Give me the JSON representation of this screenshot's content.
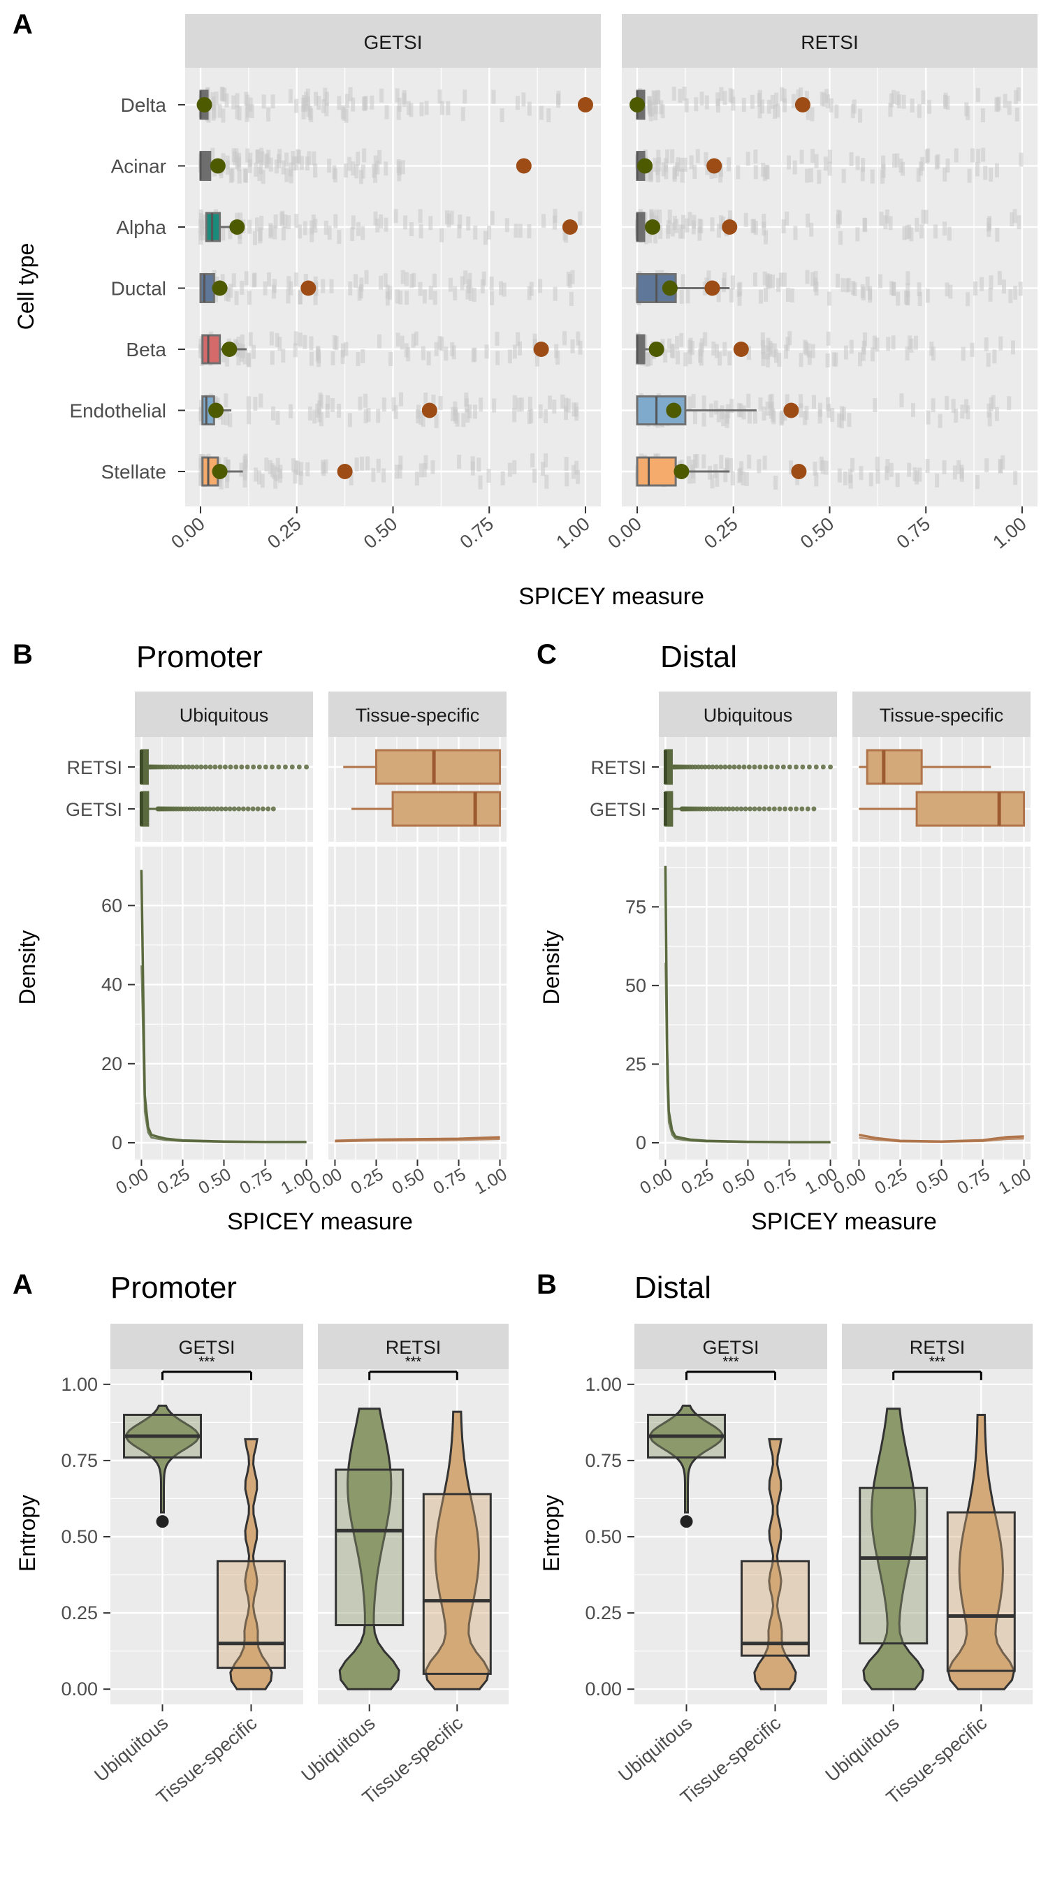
{
  "colors": {
    "panel_bg": "#ebebeb",
    "strip_bg": "#d9d9d9",
    "grid": "#ffffff",
    "ubiq_green": "#5b6a3e",
    "ubiq_fill": "#8c9a6b",
    "tissue_tan": "#b0744a",
    "tissue_fill": "#d4a979",
    "jitter_grey": "#c8c8c8",
    "dot_olive": "#4d5a00",
    "dot_brown": "#9c4c14",
    "box_grey": "#707070"
  },
  "chart_data": [
    {
      "id": "A_top",
      "type": "box+jitter",
      "panel_label": "A",
      "facets": [
        "GETSI",
        "RETSI"
      ],
      "ylabel": "Cell type",
      "xlabel": "SPICEY measure",
      "xlim": [
        0,
        1
      ],
      "xticks": [
        "0.00",
        "0.25",
        "0.50",
        "0.75",
        "1.00"
      ],
      "categories": [
        "Delta",
        "Acinar",
        "Alpha",
        "Ductal",
        "Beta",
        "Endothelial",
        "Stellate"
      ],
      "category_colors": {
        "GETSI": [
          "#6e6e6e",
          "#6e6e6e",
          "#1a8a7a",
          "#5f7899",
          "#d46a6a",
          "#7faacb",
          "#f5ab6c"
        ],
        "RETSI": [
          "#6e6e6e",
          "#6e6e6e",
          "#6e6e6e",
          "#5f7899",
          "#6e6e6e",
          "#7faacb",
          "#f5ab6c"
        ]
      },
      "series": [
        {
          "facet": "GETSI",
          "box": [
            {
              "q1": 0.0,
              "median": 0.0,
              "q3": 0.015,
              "whisker_high": 0.015
            },
            {
              "q1": 0.0,
              "median": 0.0,
              "q3": 0.025,
              "whisker_high": 0.025
            },
            {
              "q1": 0.015,
              "median": 0.03,
              "q3": 0.05,
              "whisker_high": 0.09
            },
            {
              "q1": 0.0,
              "median": 0.01,
              "q3": 0.035,
              "whisker_high": 0.07
            },
            {
              "q1": 0.005,
              "median": 0.02,
              "q3": 0.05,
              "whisker_high": 0.12
            },
            {
              "q1": 0.005,
              "median": 0.015,
              "q3": 0.035,
              "whisker_high": 0.08
            },
            {
              "q1": 0.005,
              "median": 0.02,
              "q3": 0.045,
              "whisker_high": 0.11
            }
          ],
          "mean_olive": [
            0.01,
            0.045,
            0.095,
            0.05,
            0.075,
            0.04,
            0.05
          ],
          "point_brown": [
            1.0,
            0.84,
            0.96,
            0.28,
            0.885,
            0.595,
            0.375
          ],
          "jitter_max": [
            1.0,
            0.55,
            1.0,
            1.0,
            1.0,
            1.0,
            1.0
          ]
        },
        {
          "facet": "RETSI",
          "box": [
            {
              "q1": 0.0,
              "median": 0.0,
              "q3": 0.01,
              "whisker_high": 0.01
            },
            {
              "q1": 0.0,
              "median": 0.0,
              "q3": 0.01,
              "whisker_high": 0.02
            },
            {
              "q1": 0.0,
              "median": 0.0,
              "q3": 0.01,
              "whisker_high": 0.03
            },
            {
              "q1": 0.0,
              "median": 0.05,
              "q3": 0.1,
              "whisker_high": 0.24
            },
            {
              "q1": 0.0,
              "median": 0.0,
              "q3": 0.01,
              "whisker_high": 0.03
            },
            {
              "q1": 0.0,
              "median": 0.05,
              "q3": 0.125,
              "whisker_high": 0.31
            },
            {
              "q1": 0.0,
              "median": 0.03,
              "q3": 0.1,
              "whisker_high": 0.24
            }
          ],
          "mean_olive": [
            0.0,
            0.02,
            0.04,
            0.085,
            0.05,
            0.095,
            0.115
          ],
          "point_brown": [
            0.43,
            0.2,
            0.24,
            0.195,
            0.27,
            0.4,
            0.42
          ],
          "jitter_max": [
            1.0,
            1.0,
            1.0,
            1.0,
            1.0,
            1.0,
            1.0
          ]
        }
      ]
    },
    {
      "id": "B_mid",
      "type": "box+density",
      "panel_label": "B",
      "title": "Promoter",
      "facets": [
        "Ubiquitous",
        "Tissue-specific"
      ],
      "box_categories": [
        "RETSI",
        "GETSI"
      ],
      "ylabel": "Density",
      "xlabel": "SPICEY measure",
      "xlim": [
        0,
        1
      ],
      "ylim": [
        0,
        70
      ],
      "yticks": [
        0,
        20,
        40,
        60
      ],
      "xticks": [
        "0.00",
        "0.25",
        "0.50",
        "0.75",
        "1.00"
      ],
      "boxes": {
        "Ubiquitous": [
          {
            "q1": 0.0,
            "median": 0.0,
            "q3": 0.02,
            "whisker_high": 0.05,
            "outliers_to": 1.0
          },
          {
            "q1": 0.0,
            "median": 0.0,
            "q3": 0.04,
            "whisker_high": 0.1,
            "outliers_to": 0.8
          }
        ],
        "Tissue-specific": [
          {
            "q1": 0.25,
            "median": 0.6,
            "q3": 1.0,
            "whisker_high": 1.0,
            "whisker_low": 0.05
          },
          {
            "q1": 0.35,
            "median": 0.85,
            "q3": 1.0,
            "whisker_high": 1.0,
            "whisker_low": 0.1
          }
        ]
      },
      "density": {
        "Ubiquitous": {
          "x": [
            0.0,
            0.005,
            0.01,
            0.02,
            0.04,
            0.06,
            0.1,
            0.15,
            0.25,
            0.5,
            0.75,
            1.0
          ],
          "y": [
            69,
            55,
            40,
            12,
            4,
            2,
            1.5,
            1,
            0.6,
            0.3,
            0.2,
            0.2
          ]
        },
        "Tissue-specific": {
          "x": [
            0.0,
            0.25,
            0.5,
            0.75,
            1.0
          ],
          "y": [
            0.5,
            0.8,
            0.9,
            1.0,
            1.4
          ]
        }
      }
    },
    {
      "id": "C_mid",
      "type": "box+density",
      "panel_label": "C",
      "title": "Distal",
      "facets": [
        "Ubiquitous",
        "Tissue-specific"
      ],
      "box_categories": [
        "RETSI",
        "GETSI"
      ],
      "ylabel": "Density",
      "xlabel": "SPICEY measure",
      "xlim": [
        0,
        1
      ],
      "ylim": [
        0,
        88
      ],
      "yticks": [
        0,
        25,
        50,
        75
      ],
      "xticks": [
        "0.00",
        "0.25",
        "0.50",
        "0.75",
        "1.00"
      ],
      "boxes": {
        "Ubiquitous": [
          {
            "q1": 0.0,
            "median": 0.0,
            "q3": 0.02,
            "whisker_high": 0.05,
            "outliers_to": 1.0
          },
          {
            "q1": 0.0,
            "median": 0.0,
            "q3": 0.04,
            "whisker_high": 0.1,
            "outliers_to": 0.9
          }
        ],
        "Tissue-specific": [
          {
            "q1": 0.05,
            "median": 0.15,
            "q3": 0.38,
            "whisker_high": 0.8,
            "whisker_low": 0.0
          },
          {
            "q1": 0.35,
            "median": 0.85,
            "q3": 1.0,
            "whisker_high": 1.0,
            "whisker_low": 0.0
          }
        ]
      },
      "density": {
        "Ubiquitous": {
          "x": [
            0.0,
            0.005,
            0.01,
            0.02,
            0.04,
            0.06,
            0.1,
            0.15,
            0.25,
            0.5,
            0.75,
            1.0
          ],
          "y": [
            88,
            60,
            30,
            10,
            4,
            2,
            1.5,
            1,
            0.6,
            0.3,
            0.2,
            0.2
          ]
        },
        "Tissue-specific": {
          "x": [
            0.0,
            0.1,
            0.25,
            0.5,
            0.75,
            0.9,
            1.0
          ],
          "y": [
            2.5,
            1.5,
            0.6,
            0.4,
            0.8,
            1.8,
            2.0
          ]
        }
      }
    },
    {
      "id": "A_bot",
      "type": "violin+box",
      "panel_label": "A",
      "title": "Promoter",
      "facets": [
        "GETSI",
        "RETSI"
      ],
      "ylabel": "Entropy",
      "ylim": [
        -0.05,
        1.05
      ],
      "yticks": [
        "0.00",
        "0.25",
        "0.50",
        "0.75",
        "1.00"
      ],
      "categories": [
        "Ubiquitous",
        "Tissue-specific"
      ],
      "significance": "***",
      "boxes": {
        "GETSI": [
          {
            "q1": 0.76,
            "median": 0.83,
            "q3": 0.9,
            "whisker_low": 0.58,
            "whisker_high": 0.93,
            "outlier": 0.55
          },
          {
            "q1": 0.07,
            "median": 0.15,
            "q3": 0.42,
            "whisker_low": 0.0,
            "whisker_high": 0.82
          }
        ],
        "RETSI": [
          {
            "q1": 0.21,
            "median": 0.52,
            "q3": 0.72,
            "whisker_low": 0.0,
            "whisker_high": 0.92
          },
          {
            "q1": 0.05,
            "median": 0.29,
            "q3": 0.64,
            "whisker_low": 0.0,
            "whisker_high": 0.91
          }
        ]
      }
    },
    {
      "id": "B_bot",
      "type": "violin+box",
      "panel_label": "B",
      "title": "Distal",
      "facets": [
        "GETSI",
        "RETSI"
      ],
      "ylabel": "Entropy",
      "ylim": [
        -0.05,
        1.05
      ],
      "yticks": [
        "0.00",
        "0.25",
        "0.50",
        "0.75",
        "1.00"
      ],
      "categories": [
        "Ubiquitous",
        "Tissue-specific"
      ],
      "significance": "***",
      "boxes": {
        "GETSI": [
          {
            "q1": 0.76,
            "median": 0.83,
            "q3": 0.9,
            "whisker_low": 0.58,
            "whisker_high": 0.93,
            "outlier": 0.55
          },
          {
            "q1": 0.11,
            "median": 0.15,
            "q3": 0.42,
            "whisker_low": 0.0,
            "whisker_high": 0.82
          }
        ],
        "RETSI": [
          {
            "q1": 0.15,
            "median": 0.43,
            "q3": 0.66,
            "whisker_low": 0.0,
            "whisker_high": 0.92
          },
          {
            "q1": 0.06,
            "median": 0.24,
            "q3": 0.58,
            "whisker_low": 0.0,
            "whisker_high": 0.9
          }
        ]
      }
    }
  ]
}
